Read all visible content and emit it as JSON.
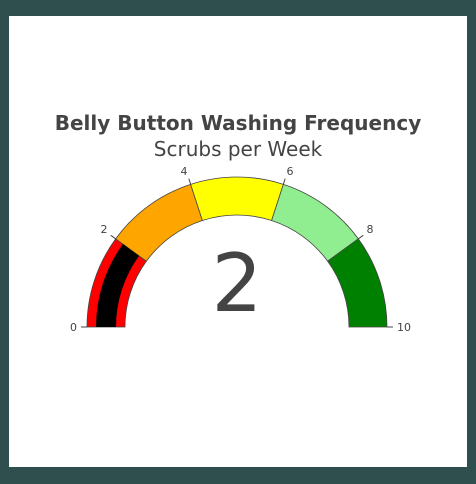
{
  "chart_data": {
    "type": "gauge",
    "title": "Belly Button Washing Frequency",
    "subtitle": "Scrubs per Week",
    "value": 2,
    "value_label": "2",
    "range": [
      0,
      10
    ],
    "ticks": [
      {
        "value": 0,
        "label": "0"
      },
      {
        "value": 2,
        "label": "2"
      },
      {
        "value": 4,
        "label": "4"
      },
      {
        "value": 6,
        "label": "6"
      },
      {
        "value": 8,
        "label": "8"
      },
      {
        "value": 10,
        "label": "10"
      }
    ],
    "steps": [
      {
        "range": [
          0,
          2
        ],
        "color": "#ff0000"
      },
      {
        "range": [
          2,
          4
        ],
        "color": "#ffa500"
      },
      {
        "range": [
          4,
          6
        ],
        "color": "#ffff00"
      },
      {
        "range": [
          6,
          8
        ],
        "color": "#90ee90"
      },
      {
        "range": [
          8,
          10
        ],
        "color": "#008000"
      }
    ],
    "bar_color": "#000000"
  },
  "colors": {
    "page_background": "#2f4f4f",
    "card_background": "#ffffff",
    "text": "#444444"
  }
}
